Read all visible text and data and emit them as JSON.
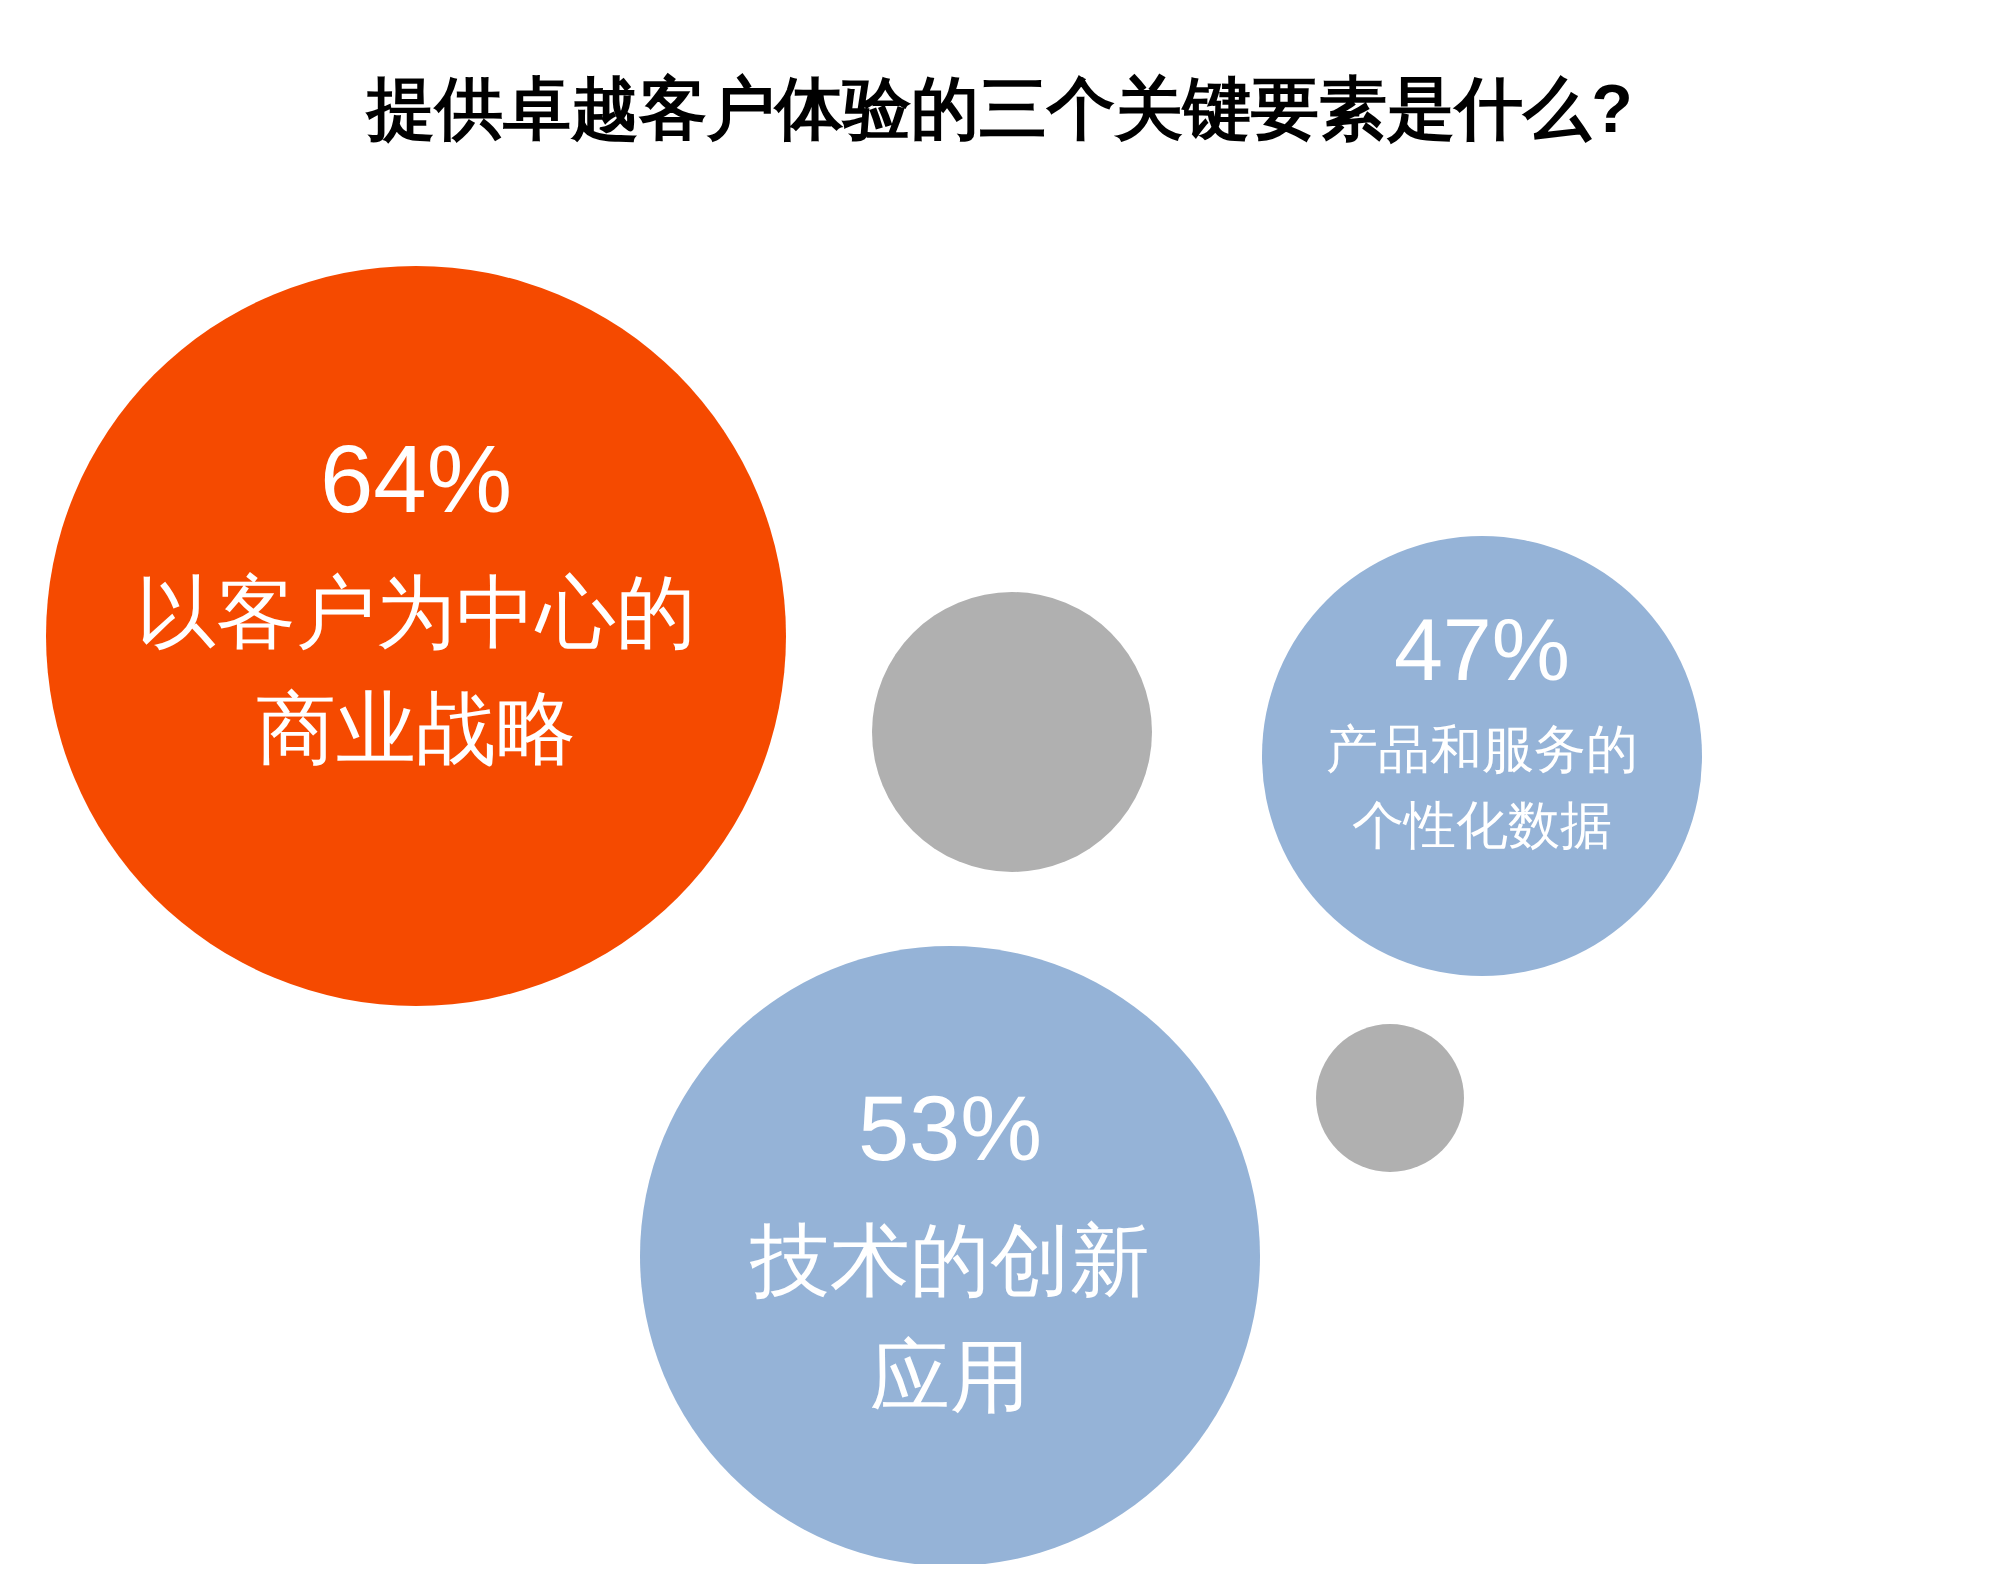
{
  "chart_data": {
    "type": "other",
    "title": "提供卓越客户体验的三个关键要素是什么?",
    "categories": [
      "以客户为中心的商业战略",
      "产品和服务的个性化数据",
      "技术的创新应用"
    ],
    "values": [
      64,
      47,
      53
    ],
    "value_labels": [
      "64%",
      "47%",
      "53%"
    ],
    "colors": [
      "#f54a00",
      "#95b3d7",
      "#95b3d7"
    ]
  }
}
